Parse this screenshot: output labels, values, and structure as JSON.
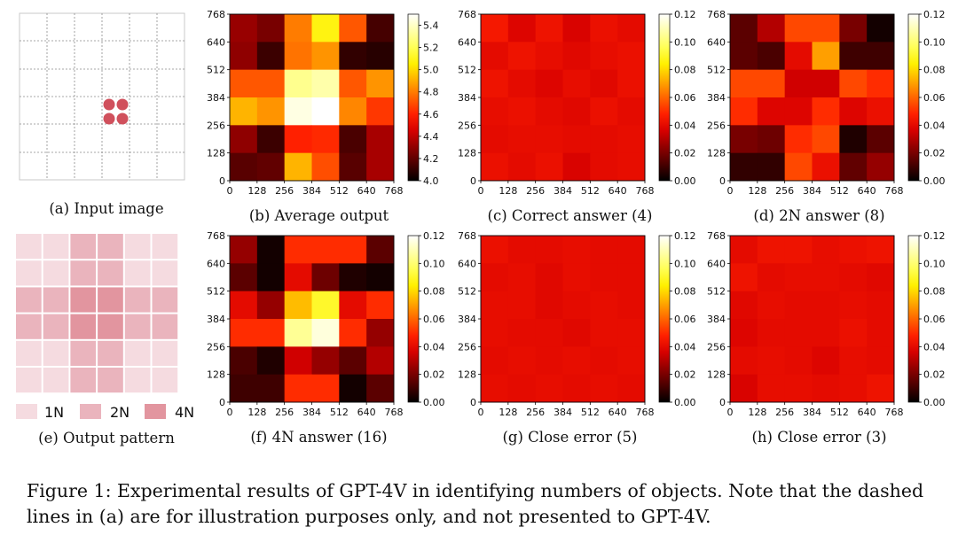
{
  "panels": {
    "a": {
      "caption": "(a) Input image"
    },
    "e": {
      "caption": "(e) Output pattern",
      "legend": [
        "1N",
        "2N",
        "4N"
      ]
    }
  },
  "figure_caption": "Figure 1: Experimental results of GPT-4V in identifying numbers of objects. Note that the dashed lines in (a) are for illustration purposes only, and not presented to GPT-4V.",
  "colors": {
    "dot": "#d0505c",
    "pattern_1n": "#f5dbe0",
    "pattern_2n": "#eab4bd",
    "pattern_4n": "#e2959f"
  },
  "pattern_grid": [
    [
      1,
      1,
      2,
      2,
      1,
      1
    ],
    [
      1,
      1,
      2,
      2,
      1,
      1
    ],
    [
      2,
      2,
      4,
      4,
      2,
      2
    ],
    [
      2,
      2,
      4,
      4,
      2,
      2
    ],
    [
      1,
      1,
      2,
      2,
      1,
      1
    ],
    [
      1,
      1,
      2,
      2,
      1,
      1
    ]
  ],
  "chart_data": [
    {
      "id": "b",
      "type": "heatmap",
      "caption": "(b) Average output",
      "x_ticks": [
        "0",
        "128",
        "256",
        "384",
        "512",
        "640",
        "768"
      ],
      "y_ticks": [
        "0",
        "128",
        "256",
        "384",
        "512",
        "640",
        "768"
      ],
      "colorbar_ticks": [
        "4.0",
        "4.2",
        "4.4",
        "4.6",
        "4.8",
        "5.0",
        "5.2",
        "5.4"
      ],
      "vmin": 4.0,
      "vmax": 5.5,
      "values": [
        [
          4.32,
          4.25,
          4.8,
          5.08,
          4.72,
          4.14
        ],
        [
          4.3,
          4.12,
          4.78,
          4.85,
          4.1,
          4.08
        ],
        [
          4.72,
          4.72,
          5.3,
          5.35,
          4.72,
          4.85
        ],
        [
          4.92,
          4.85,
          5.45,
          5.5,
          4.82,
          4.65
        ],
        [
          4.3,
          4.12,
          4.6,
          4.62,
          4.15,
          4.35
        ],
        [
          4.18,
          4.2,
          4.92,
          4.7,
          4.18,
          4.35
        ]
      ]
    },
    {
      "id": "c",
      "type": "heatmap",
      "caption": "(c) Correct answer (4)",
      "x_ticks": [
        "0",
        "128",
        "256",
        "384",
        "512",
        "640",
        "768"
      ],
      "y_ticks": [
        "0",
        "128",
        "256",
        "384",
        "512",
        "640",
        "768"
      ],
      "colorbar_ticks": [
        "0.00",
        "0.02",
        "0.04",
        "0.06",
        "0.08",
        "0.10",
        "0.12"
      ],
      "vmin": 0.0,
      "vmax": 0.12,
      "values": [
        [
          0.045,
          0.038,
          0.043,
          0.037,
          0.042,
          0.04
        ],
        [
          0.04,
          0.043,
          0.041,
          0.039,
          0.041,
          0.042
        ],
        [
          0.043,
          0.04,
          0.038,
          0.041,
          0.039,
          0.042
        ],
        [
          0.041,
          0.042,
          0.04,
          0.039,
          0.042,
          0.04
        ],
        [
          0.04,
          0.041,
          0.041,
          0.04,
          0.04,
          0.041
        ],
        [
          0.042,
          0.04,
          0.042,
          0.037,
          0.04,
          0.041
        ]
      ]
    },
    {
      "id": "d",
      "type": "heatmap",
      "caption": "(d) 2N answer (8)",
      "x_ticks": [
        "0",
        "128",
        "256",
        "384",
        "512",
        "640",
        "768"
      ],
      "y_ticks": [
        "0",
        "128",
        "256",
        "384",
        "512",
        "640",
        "768"
      ],
      "colorbar_ticks": [
        "0.00",
        "0.02",
        "0.04",
        "0.06",
        "0.08",
        "0.10",
        "0.12"
      ],
      "vmin": 0.0,
      "vmax": 0.12,
      "values": [
        [
          0.015,
          0.03,
          0.055,
          0.055,
          0.02,
          0.003
        ],
        [
          0.015,
          0.012,
          0.04,
          0.07,
          0.01,
          0.01
        ],
        [
          0.055,
          0.055,
          0.035,
          0.035,
          0.055,
          0.05
        ],
        [
          0.05,
          0.038,
          0.038,
          0.05,
          0.038,
          0.042
        ],
        [
          0.02,
          0.018,
          0.05,
          0.055,
          0.005,
          0.015
        ],
        [
          0.008,
          0.008,
          0.055,
          0.042,
          0.016,
          0.025
        ]
      ]
    },
    {
      "id": "f",
      "type": "heatmap",
      "caption": "(f) 4N answer (16)",
      "x_ticks": [
        "0",
        "128",
        "256",
        "384",
        "512",
        "640",
        "768"
      ],
      "y_ticks": [
        "0",
        "128",
        "256",
        "384",
        "512",
        "640",
        "768"
      ],
      "colorbar_ticks": [
        "0.00",
        "0.02",
        "0.04",
        "0.06",
        "0.08",
        "0.10",
        "0.12"
      ],
      "vmin": 0.0,
      "vmax": 0.12,
      "values": [
        [
          0.025,
          0.003,
          0.05,
          0.05,
          0.05,
          0.015
        ],
        [
          0.015,
          0.003,
          0.04,
          0.018,
          0.005,
          0.003
        ],
        [
          0.04,
          0.025,
          0.075,
          0.09,
          0.04,
          0.05
        ],
        [
          0.05,
          0.05,
          0.105,
          0.115,
          0.05,
          0.025
        ],
        [
          0.012,
          0.005,
          0.035,
          0.025,
          0.015,
          0.03
        ],
        [
          0.01,
          0.01,
          0.05,
          0.05,
          0.003,
          0.015
        ]
      ]
    },
    {
      "id": "g",
      "type": "heatmap",
      "caption": "(g) Close error (5)",
      "x_ticks": [
        "0",
        "128",
        "256",
        "384",
        "512",
        "640",
        "768"
      ],
      "y_ticks": [
        "0",
        "128",
        "256",
        "384",
        "512",
        "640",
        "768"
      ],
      "colorbar_ticks": [
        "0.00",
        "0.02",
        "0.04",
        "0.06",
        "0.08",
        "0.10",
        "0.12"
      ],
      "vmin": 0.0,
      "vmax": 0.12,
      "values": [
        [
          0.042,
          0.04,
          0.04,
          0.041,
          0.04,
          0.04
        ],
        [
          0.04,
          0.041,
          0.039,
          0.041,
          0.04,
          0.04
        ],
        [
          0.041,
          0.041,
          0.039,
          0.04,
          0.041,
          0.04
        ],
        [
          0.041,
          0.04,
          0.04,
          0.039,
          0.041,
          0.041
        ],
        [
          0.04,
          0.041,
          0.04,
          0.041,
          0.04,
          0.041
        ],
        [
          0.041,
          0.04,
          0.041,
          0.04,
          0.041,
          0.04
        ]
      ]
    },
    {
      "id": "h",
      "type": "heatmap",
      "caption": "(h) Close error (3)",
      "x_ticks": [
        "0",
        "128",
        "256",
        "384",
        "512",
        "640",
        "768"
      ],
      "y_ticks": [
        "0",
        "128",
        "256",
        "384",
        "512",
        "640",
        "768"
      ],
      "colorbar_ticks": [
        "0.00",
        "0.02",
        "0.04",
        "0.06",
        "0.08",
        "0.10",
        "0.12"
      ],
      "vmin": 0.0,
      "vmax": 0.12,
      "values": [
        [
          0.04,
          0.043,
          0.043,
          0.041,
          0.042,
          0.043
        ],
        [
          0.043,
          0.04,
          0.041,
          0.041,
          0.04,
          0.039
        ],
        [
          0.039,
          0.041,
          0.04,
          0.04,
          0.041,
          0.04
        ],
        [
          0.038,
          0.04,
          0.04,
          0.04,
          0.042,
          0.04
        ],
        [
          0.04,
          0.041,
          0.04,
          0.038,
          0.041,
          0.04
        ],
        [
          0.037,
          0.041,
          0.041,
          0.04,
          0.041,
          0.043
        ]
      ]
    }
  ]
}
